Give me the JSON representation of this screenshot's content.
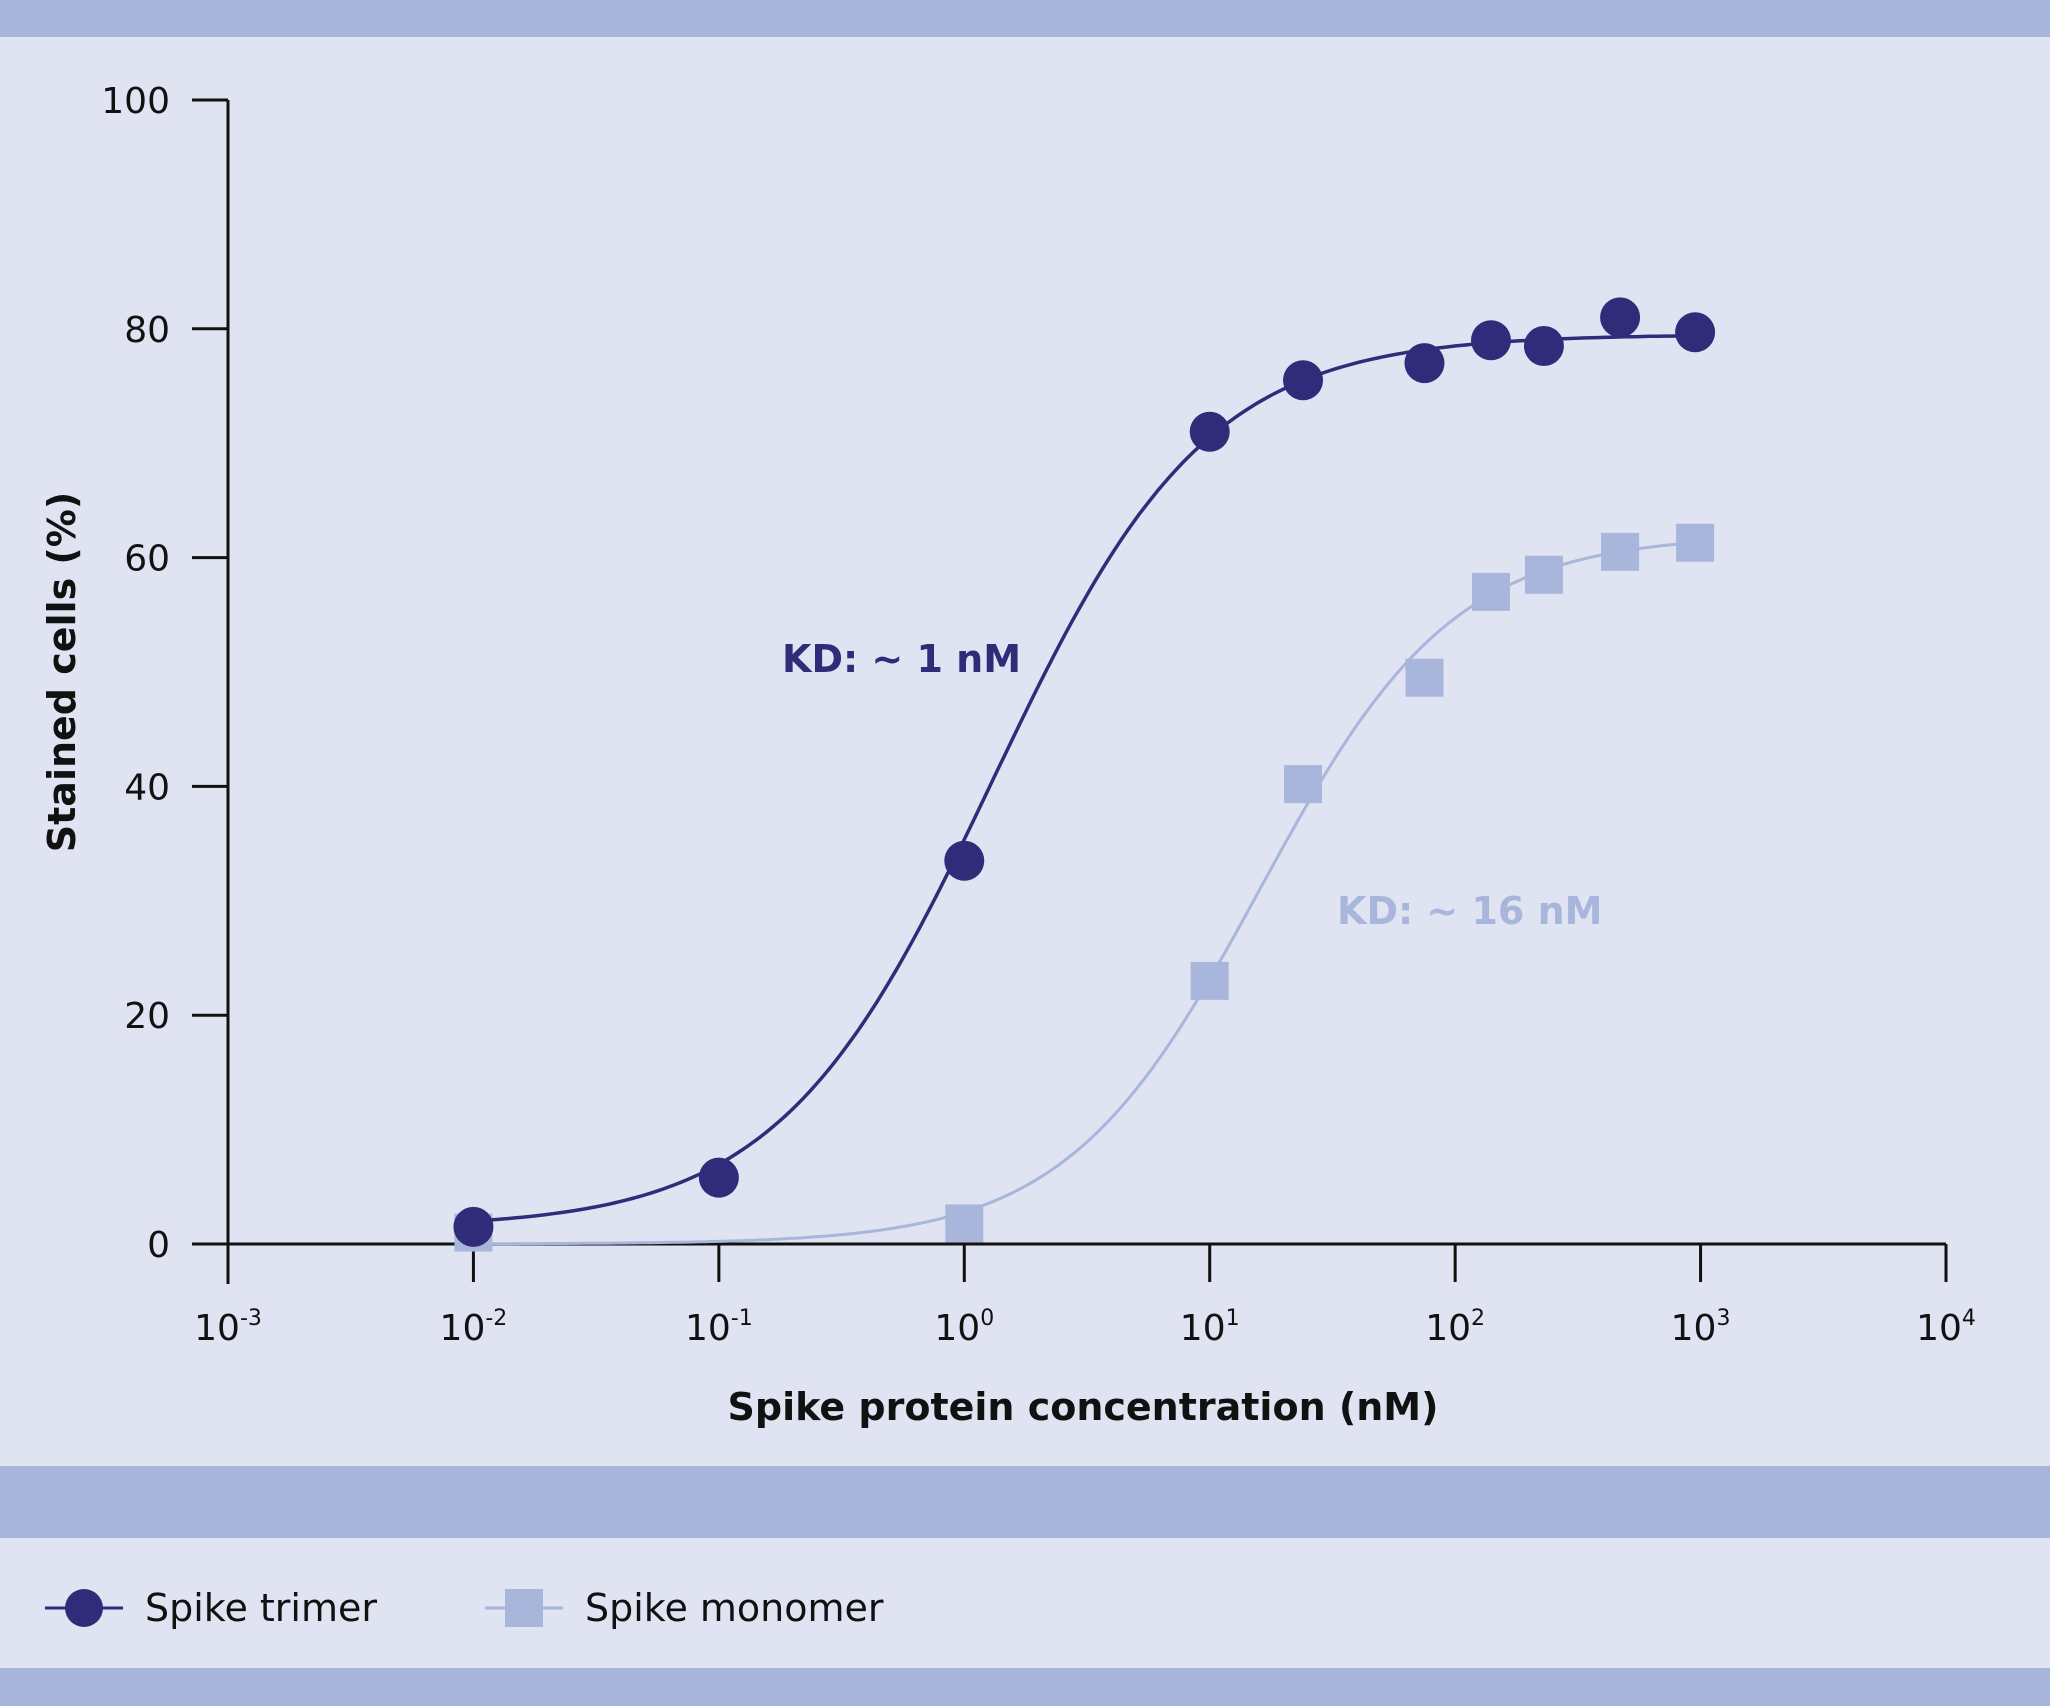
{
  "colors": {
    "background": "#e0e3f1",
    "band": "#a7b5da",
    "trimer": "#302c79",
    "monomer": "#a8b6db",
    "axis": "#111111"
  },
  "chart_data": {
    "type": "scatter",
    "xscale": "log",
    "xlim": [
      0.001,
      10000
    ],
    "ylim": [
      0,
      100
    ],
    "xlabel": "Spike protein concentration (nM)",
    "ylabel": "Stained cells (%)",
    "y_ticks": [
      0,
      20,
      40,
      60,
      80,
      100
    ],
    "x_ticks": [
      {
        "base": "10",
        "exp": "-3",
        "value": 0.001
      },
      {
        "base": "10",
        "exp": "-2",
        "value": 0.01
      },
      {
        "base": "10",
        "exp": "-1",
        "value": 0.1
      },
      {
        "base": "10",
        "exp": "0",
        "value": 1
      },
      {
        "base": "10",
        "exp": "1",
        "value": 10
      },
      {
        "base": "10",
        "exp": "2",
        "value": 100
      },
      {
        "base": "10",
        "exp": "3",
        "value": 1000
      },
      {
        "base": "10",
        "exp": "4",
        "value": 10000
      }
    ],
    "series": [
      {
        "name": "Spike trimer",
        "marker": "circle",
        "x": [
          0.01,
          0.1,
          1,
          10,
          24,
          75,
          140,
          230,
          470,
          950
        ],
        "y": [
          1.5,
          5.8,
          33.5,
          71,
          75.5,
          77,
          79,
          78.5,
          81,
          79.7
        ],
        "fit": {
          "bottom": 1.4,
          "top": 79.5,
          "ec50": 1.3,
          "hill": 1.0
        },
        "annotation": "KD: ~ 1 nM"
      },
      {
        "name": "Spike monomer",
        "marker": "square",
        "x": [
          0.01,
          1,
          10,
          24,
          75,
          140,
          230,
          470,
          950
        ],
        "y": [
          1,
          1.8,
          23,
          40.2,
          49.5,
          57,
          58.5,
          60.5,
          61.3
        ],
        "fit": {
          "bottom": 0,
          "top": 62,
          "ec50": 16,
          "hill": 1.1
        },
        "annotation": "KD: ~ 16 nM"
      }
    ],
    "legend": {
      "position": "bottom-left"
    }
  }
}
